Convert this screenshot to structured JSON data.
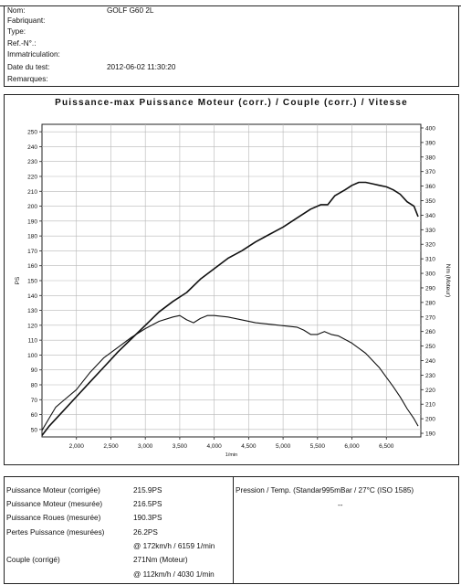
{
  "header": {
    "rows": [
      {
        "label": "Nom:",
        "value": "GOLF G60 2L"
      },
      {
        "label": "Fabriquant:",
        "value": ""
      },
      {
        "label": "Type:",
        "value": ""
      },
      {
        "label": "Ref.-N°.:",
        "value": ""
      },
      {
        "label": "Immatriculation:",
        "value": ""
      },
      {
        "label": "Date du test:",
        "value": "2012-06-02 11:30:20"
      },
      {
        "label": "Remarques:",
        "value": ""
      }
    ]
  },
  "chart_data": {
    "type": "line",
    "title": "Puissance-max Puissance Moteur (corr.) / Couple (corr.) / Vitesse",
    "xlabel": "1/min",
    "ylabel": "PS",
    "y2label": "Nm (Moteur)",
    "xlim": [
      1500,
      7000
    ],
    "ylim": [
      45,
      255
    ],
    "y2lim": [
      187.5,
      402.5
    ],
    "x_ticks": [
      2000,
      2500,
      3000,
      3500,
      4000,
      4500,
      5000,
      5500,
      6000,
      6500
    ],
    "x_tick_labels": [
      "2,000",
      "2,500",
      "3,000",
      "3,500",
      "4,000",
      "4,500",
      "5,000",
      "5,500",
      "6,000",
      "6,500"
    ],
    "y_ticks": [
      50,
      60,
      70,
      80,
      90,
      100,
      110,
      120,
      130,
      140,
      150,
      160,
      170,
      180,
      190,
      200,
      210,
      220,
      230,
      240,
      250
    ],
    "y2_ticks": [
      190,
      200,
      210,
      220,
      230,
      240,
      250,
      260,
      270,
      280,
      290,
      300,
      310,
      320,
      330,
      340,
      350,
      360,
      370,
      380,
      390,
      400
    ],
    "grid": true,
    "series": [
      {
        "axis": "left",
        "color": "#111111",
        "x": [
          1500,
          1600,
          1800,
          2000,
          2200,
          2400,
          2600,
          2800,
          3000,
          3200,
          3400,
          3600,
          3800,
          4000,
          4200,
          4400,
          4600,
          4800,
          5000,
          5200,
          5400,
          5550,
          5650,
          5750,
          5900,
          6000,
          6100,
          6200,
          6300,
          6400,
          6500,
          6600,
          6700,
          6800,
          6900,
          6960
        ],
        "values": [
          46,
          52,
          62,
          72,
          82,
          92,
          102,
          111,
          120,
          129,
          136,
          142,
          151,
          158,
          165,
          170,
          176,
          181,
          186,
          192,
          198,
          201,
          201,
          207,
          211,
          214,
          216,
          216,
          215,
          214,
          213,
          211,
          208,
          203,
          200,
          193
        ]
      },
      {
        "axis": "right",
        "color": "#111111",
        "x": [
          1500,
          1600,
          1700,
          1800,
          2000,
          2200,
          2400,
          2600,
          2800,
          3000,
          3200,
          3400,
          3500,
          3600,
          3700,
          3800,
          3900,
          4000,
          4200,
          4400,
          4600,
          4800,
          5000,
          5200,
          5300,
          5400,
          5500,
          5600,
          5700,
          5800,
          6000,
          6200,
          6400,
          6600,
          6700,
          6800,
          6900,
          6960
        ],
        "values": [
          192,
          200,
          208,
          212,
          220,
          232,
          242,
          249,
          256,
          262,
          267,
          270,
          271,
          268,
          266,
          269,
          271,
          271,
          270,
          268,
          266,
          265,
          264,
          263,
          261,
          258,
          258,
          260,
          258,
          257,
          252,
          245,
          235,
          222,
          215,
          207,
          200,
          195
        ]
      }
    ]
  },
  "results": {
    "rows": [
      {
        "label": "Puissance Moteur (corrigée)",
        "value": "215.9PS"
      },
      {
        "label": "Puissance Moteur (mesurée)",
        "value": "216.5PS"
      },
      {
        "label": "Puissance Roues (mesurée)",
        "value": "190.3PS"
      },
      {
        "label": "Pertes Puissance (mesurées)",
        "value": "26.2PS"
      },
      {
        "label": "",
        "value": "@ 172km/h / 6159 1/min"
      },
      {
        "label": "Couple (corrigé)",
        "value": "271Nm (Moteur)"
      },
      {
        "label": "",
        "value": "@ 112km/h / 4030 1/min"
      }
    ],
    "pression_label": "Pression / Temp. (Standar995mBar / 27°C   (ISO 1585)",
    "pression_value": "--"
  }
}
